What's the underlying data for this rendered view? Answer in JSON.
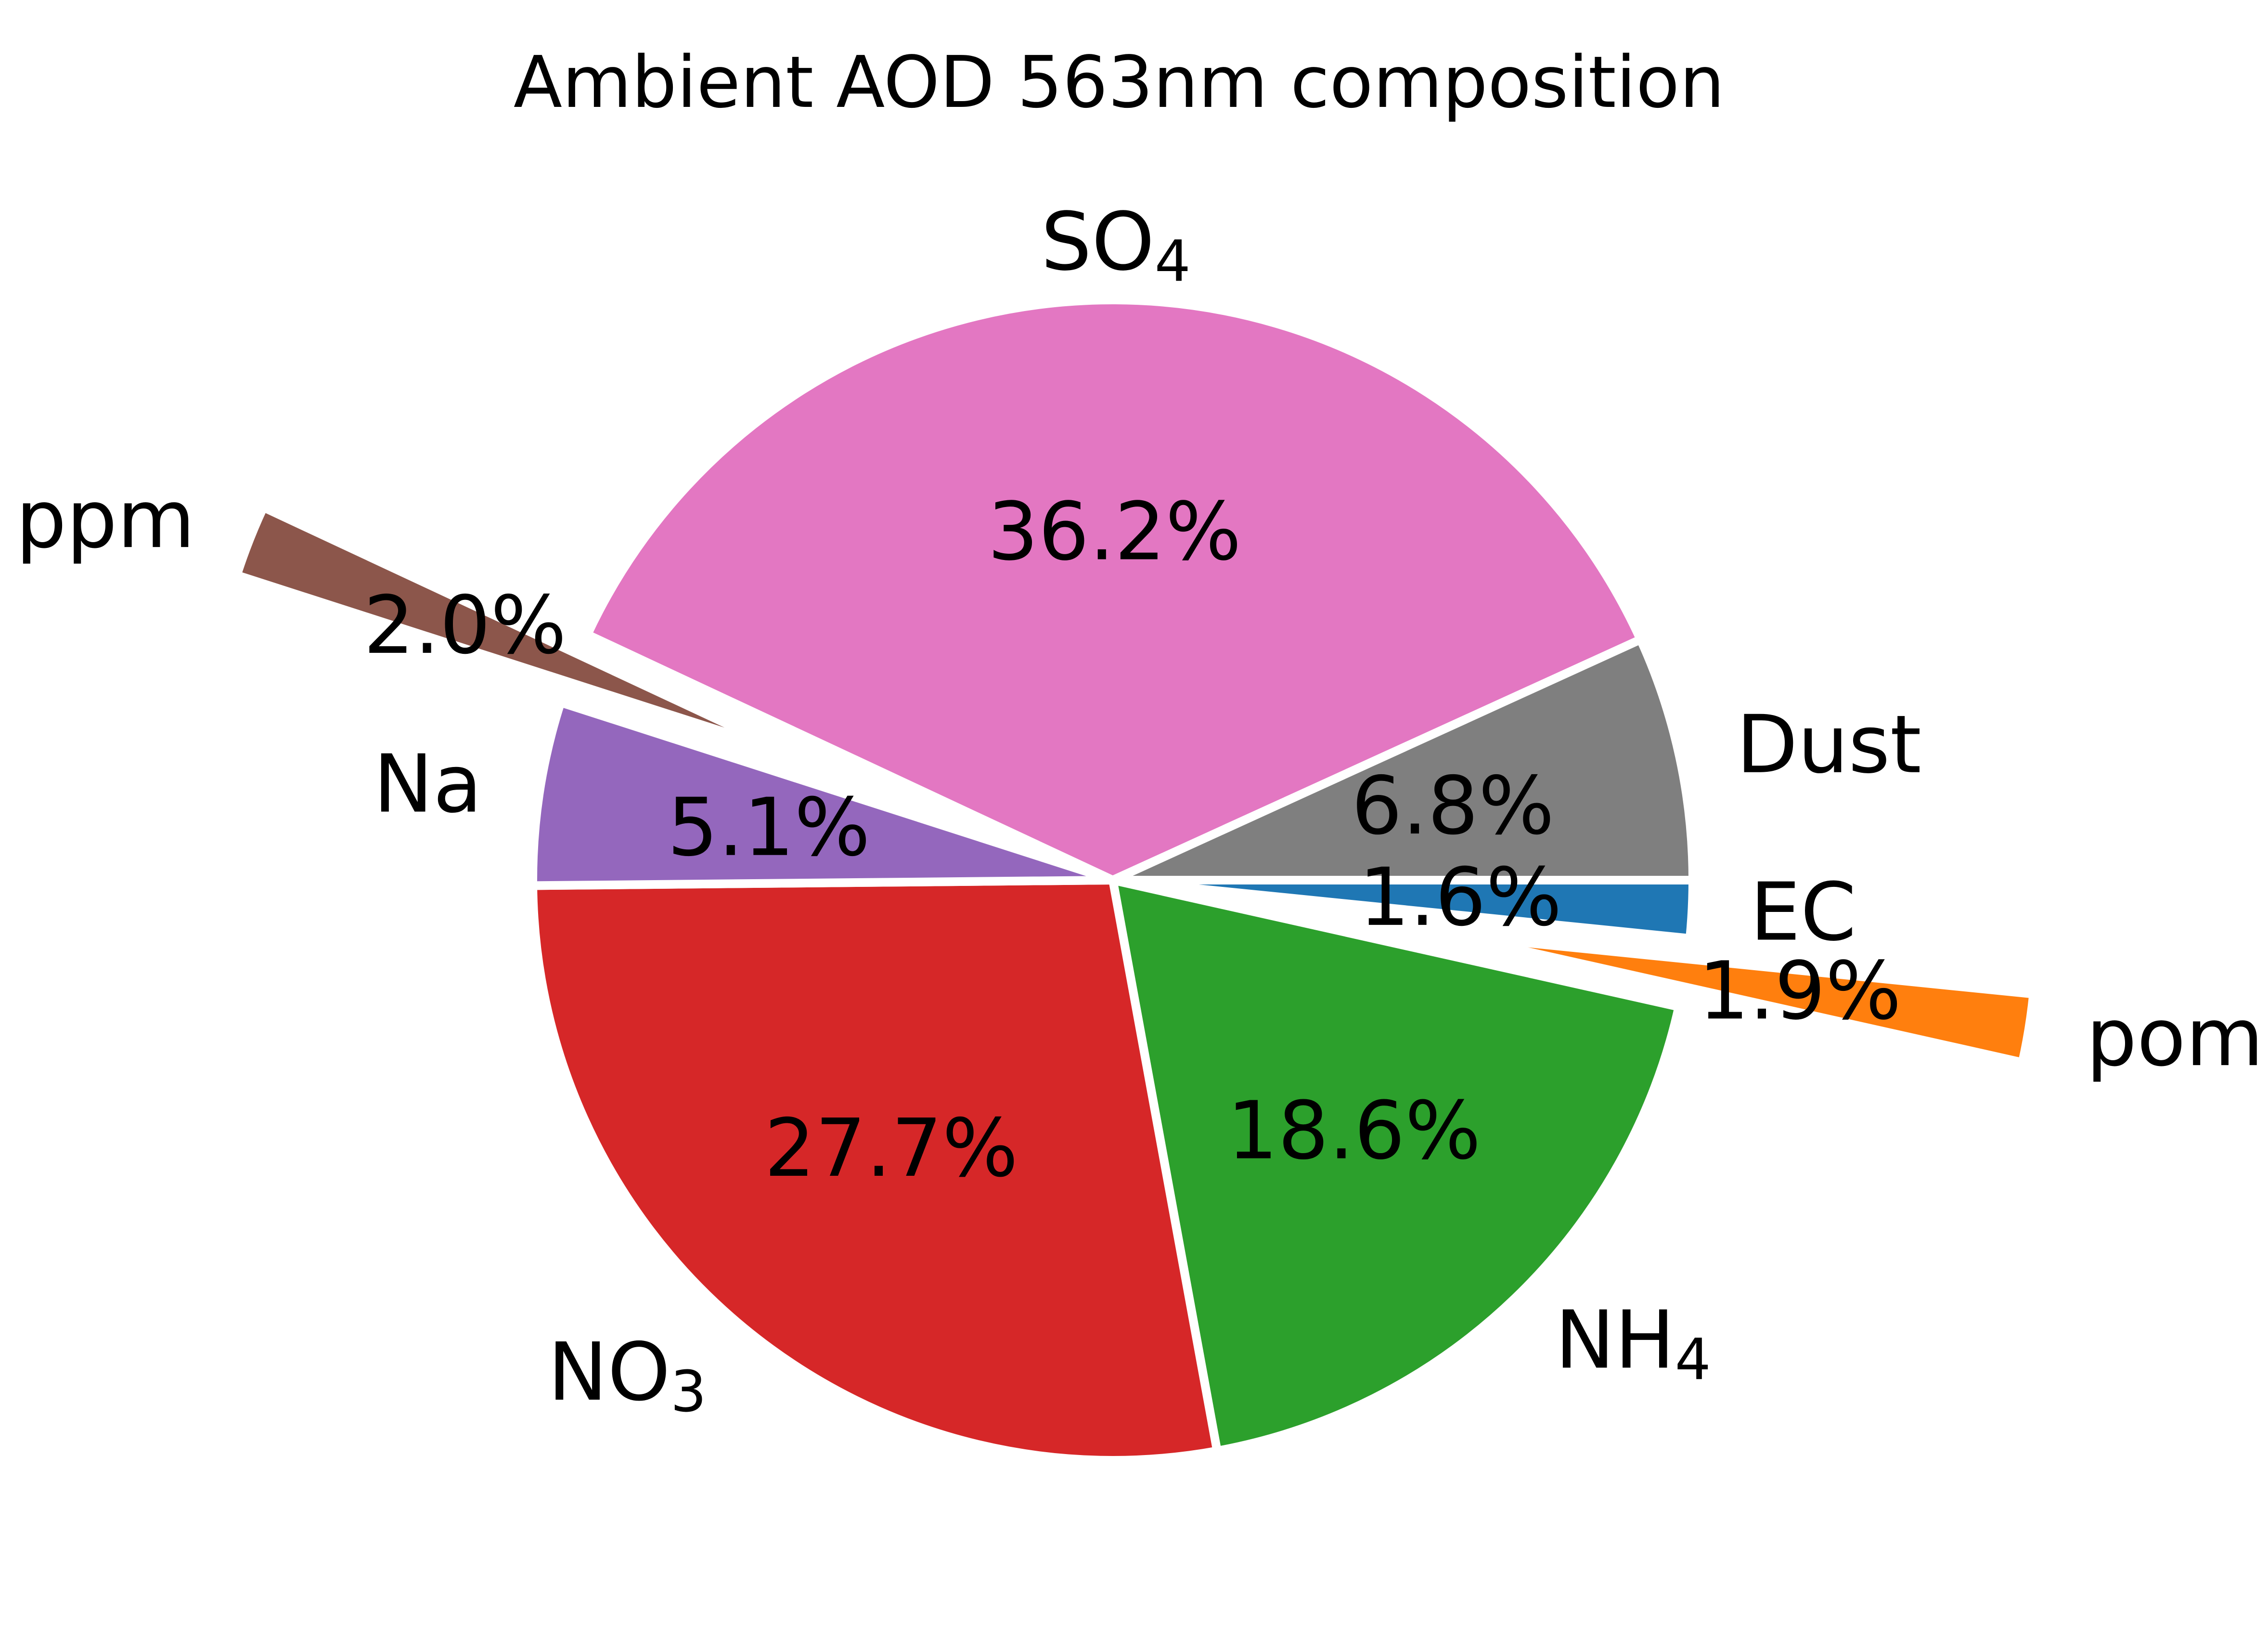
{
  "chart_data": {
    "type": "pie",
    "title": "Ambient AOD 563nm composition",
    "slices": [
      {
        "label": "EC",
        "sub": "",
        "value": 1.6,
        "pct_label": "1.6%",
        "color": "#1f77b4",
        "exploded": false
      },
      {
        "label": "pom",
        "sub": "",
        "value": 1.9,
        "pct_label": "1.9%",
        "color": "#ff7f0e",
        "exploded": true
      },
      {
        "label": "NH",
        "sub": "4",
        "value": 18.6,
        "pct_label": "18.6%",
        "color": "#2ca02c",
        "exploded": false
      },
      {
        "label": "NO",
        "sub": "3",
        "value": 27.7,
        "pct_label": "27.7%",
        "color": "#d62728",
        "exploded": false
      },
      {
        "label": "Na",
        "sub": "",
        "value": 5.1,
        "pct_label": "5.1%",
        "color": "#9467bd",
        "exploded": false
      },
      {
        "label": "ppm",
        "sub": "",
        "value": 2.0,
        "pct_label": "2.0%",
        "color": "#8c564b",
        "exploded": true
      },
      {
        "label": "SO",
        "sub": "4",
        "value": 36.2,
        "pct_label": "36.2%",
        "color": "#e377c2",
        "exploded": false
      },
      {
        "label": "Dust",
        "sub": "",
        "value": 6.8,
        "pct_label": "6.8%",
        "color": "#7f7f7f",
        "exploded": false
      }
    ],
    "start_angle_deg": 0,
    "direction": "clockwise",
    "edge_color": "#ffffff"
  }
}
